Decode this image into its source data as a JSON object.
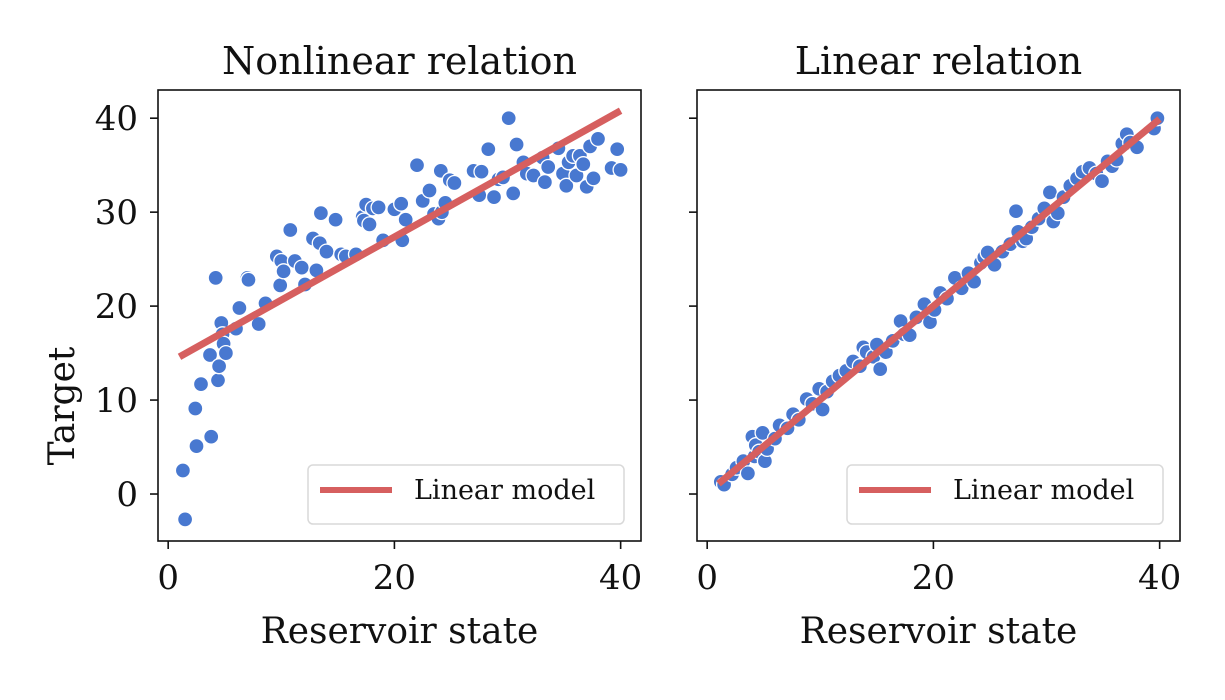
{
  "chart_data": [
    {
      "type": "scatter",
      "title": "Nonlinear relation",
      "xlabel": "Reservoir state",
      "ylabel": "Target",
      "xlim": [
        -0.9,
        41.8
      ],
      "ylim": [
        -5,
        43
      ],
      "xticks": [
        0,
        20,
        40
      ],
      "yticks": [
        0,
        10,
        20,
        30,
        40
      ],
      "grid": false,
      "legend_position": "bottom-right",
      "point_color": "#4878d0",
      "line_color": "#d65f5f",
      "series": [
        {
          "name": "",
          "kind": "points",
          "x": [
            1.3,
            1.5,
            2.4,
            2.5,
            2.9,
            3.7,
            3.8,
            4.2,
            4.4,
            4.5,
            4.7,
            4.8,
            4.9,
            5.1,
            6.0,
            6.3,
            7.0,
            7.1,
            8.0,
            8.6,
            9.6,
            9.9,
            10.0,
            10.2,
            10.8,
            11.2,
            11.8,
            12.1,
            12.8,
            13.1,
            13.4,
            13.5,
            14.0,
            14.8,
            15.3,
            15.7,
            16.6,
            17.2,
            17.3,
            17.5,
            17.8,
            18.1,
            18.6,
            19.0,
            20.0,
            20.6,
            20.7,
            21.0,
            22.0,
            22.5,
            23.1,
            23.5,
            23.9,
            24.1,
            24.2,
            24.5,
            24.9,
            25.3,
            27.0,
            27.5,
            27.7,
            28.3,
            28.8,
            29.2,
            29.6,
            30.1,
            30.5,
            30.8,
            31.4,
            31.7,
            32.3,
            33.1,
            33.3,
            33.6,
            34.5,
            34.9,
            35.2,
            35.4,
            35.8,
            36.1,
            36.4,
            36.7,
            37.0,
            37.3,
            37.6,
            38.0,
            39.2,
            39.7,
            40.0
          ],
          "y": [
            2.5,
            -2.7,
            9.1,
            5.1,
            11.7,
            14.8,
            6.1,
            23.0,
            12.1,
            13.6,
            18.2,
            17.0,
            16.0,
            15.0,
            17.6,
            19.8,
            23.0,
            22.8,
            18.1,
            20.3,
            25.3,
            22.2,
            24.8,
            23.7,
            28.1,
            24.8,
            24.1,
            22.3,
            27.2,
            23.8,
            26.7,
            29.9,
            25.8,
            29.2,
            25.5,
            25.3,
            25.5,
            29.5,
            29.1,
            30.8,
            28.7,
            30.4,
            30.5,
            27.0,
            30.3,
            30.9,
            27.0,
            29.2,
            35.0,
            31.2,
            32.3,
            29.8,
            29.3,
            34.4,
            30.0,
            31.0,
            33.4,
            33.1,
            34.4,
            31.8,
            34.3,
            36.7,
            31.6,
            33.5,
            33.7,
            40.0,
            32.0,
            37.2,
            35.3,
            34.1,
            33.9,
            35.8,
            33.2,
            34.8,
            36.8,
            34.1,
            32.8,
            35.3,
            36.0,
            33.9,
            36.0,
            35.1,
            32.7,
            37.0,
            33.6,
            37.8,
            34.7,
            36.7,
            34.5
          ]
        },
        {
          "name": "Linear model",
          "kind": "line",
          "x": [
            1.0,
            40.0
          ],
          "y": [
            14.6,
            40.8
          ]
        }
      ]
    },
    {
      "type": "scatter",
      "title": "Linear relation",
      "xlabel": "Reservoir state",
      "ylabel": "",
      "xlim": [
        -0.9,
        41.8
      ],
      "ylim": [
        -5,
        43
      ],
      "xticks": [
        0,
        20,
        40
      ],
      "yticks": [
        0,
        10,
        20,
        30,
        40
      ],
      "grid": false,
      "legend_position": "bottom-right",
      "point_color": "#4878d0",
      "line_color": "#d65f5f",
      "series": [
        {
          "name": "",
          "kind": "points",
          "x": [
            1.2,
            1.5,
            2.2,
            2.6,
            3.2,
            3.6,
            4.0,
            4.2,
            4.3,
            4.6,
            4.9,
            5.1,
            5.3,
            6.0,
            6.4,
            7.1,
            7.6,
            8.1,
            8.8,
            9.3,
            9.9,
            10.2,
            10.6,
            11.1,
            11.7,
            12.3,
            12.9,
            13.5,
            13.8,
            14.1,
            14.7,
            15.0,
            15.3,
            15.8,
            16.4,
            17.1,
            17.4,
            17.9,
            18.5,
            19.2,
            19.7,
            20.1,
            20.6,
            21.2,
            21.9,
            22.5,
            23.1,
            23.6,
            24.2,
            24.5,
            24.8,
            25.4,
            26.1,
            26.8,
            27.3,
            27.5,
            27.9,
            28.2,
            28.7,
            29.3,
            29.8,
            30.3,
            30.6,
            31.0,
            31.5,
            32.1,
            32.7,
            33.2,
            33.8,
            34.4,
            34.9,
            35.4,
            35.8,
            36.2,
            36.7,
            37.1,
            37.4,
            38.0,
            39.5,
            39.8
          ],
          "y": [
            1.3,
            1.0,
            2.1,
            2.8,
            3.5,
            2.2,
            6.1,
            4.0,
            5.2,
            4.5,
            6.5,
            3.5,
            4.8,
            5.9,
            7.3,
            7.0,
            8.5,
            7.9,
            10.1,
            9.6,
            11.2,
            9.0,
            10.9,
            12.0,
            12.6,
            13.1,
            14.1,
            13.6,
            15.6,
            15.1,
            14.6,
            15.9,
            13.3,
            15.1,
            16.3,
            18.4,
            17.0,
            16.9,
            18.8,
            20.2,
            18.3,
            19.6,
            21.4,
            20.8,
            23.0,
            21.9,
            23.5,
            22.6,
            24.6,
            25.2,
            25.7,
            24.4,
            25.8,
            26.6,
            30.1,
            27.9,
            26.9,
            27.2,
            28.4,
            29.3,
            30.4,
            32.1,
            29.0,
            29.9,
            31.6,
            32.8,
            33.6,
            34.3,
            34.7,
            34.1,
            33.3,
            35.4,
            34.9,
            35.6,
            37.3,
            38.3,
            37.4,
            36.9,
            38.9,
            40.0
          ]
        },
        {
          "name": "Linear model",
          "kind": "line",
          "x": [
            1.0,
            40.0
          ],
          "y": [
            1.1,
            39.9
          ]
        }
      ]
    }
  ]
}
